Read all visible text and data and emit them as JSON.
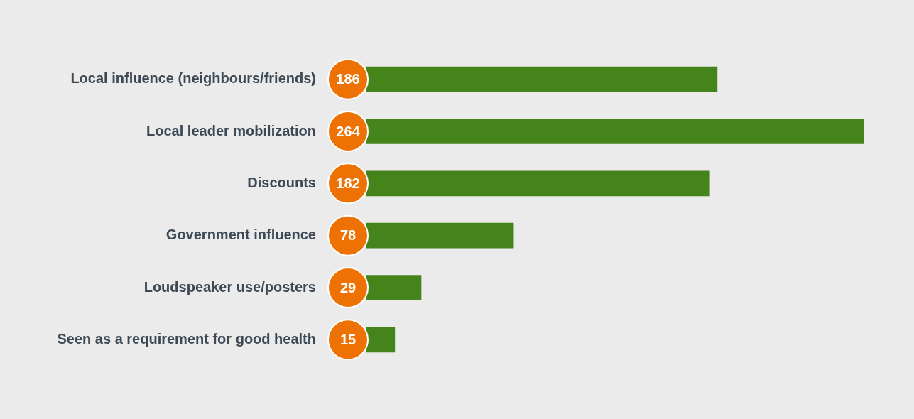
{
  "chart_data": {
    "type": "bar",
    "orientation": "horizontal",
    "categories": [
      "Local influence (neighbours/friends)",
      "Local leader mobilization",
      "Discounts",
      "Government influence",
      "Loudspeaker use/posters",
      "Seen as a requirement for good health"
    ],
    "values": [
      186,
      264,
      182,
      78,
      29,
      15
    ],
    "color": "#45841a",
    "data_labels": true
  }
}
